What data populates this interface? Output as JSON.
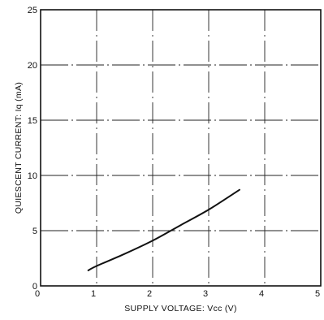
{
  "chart_data": {
    "type": "line",
    "title": "",
    "xlabel": "SUPPLY VOLTAGE: Vcc (V)",
    "ylabel": "QUIESCENT CURRENT: Iq (mA)",
    "xlim": [
      0,
      5
    ],
    "ylim": [
      0,
      25
    ],
    "xticks": [
      0,
      1,
      2,
      3,
      4,
      5
    ],
    "yticks": [
      0,
      5,
      10,
      15,
      20,
      25
    ],
    "grid": true,
    "legend": "none",
    "colors": {
      "line": "#111111",
      "grid": "#222222",
      "frame": "#111111"
    },
    "series": [
      {
        "x": [
          0.85,
          1.0,
          1.5,
          2.0,
          2.5,
          3.0,
          3.55
        ],
        "y": [
          1.4,
          1.8,
          2.9,
          4.1,
          5.5,
          6.9,
          8.7
        ]
      }
    ]
  }
}
